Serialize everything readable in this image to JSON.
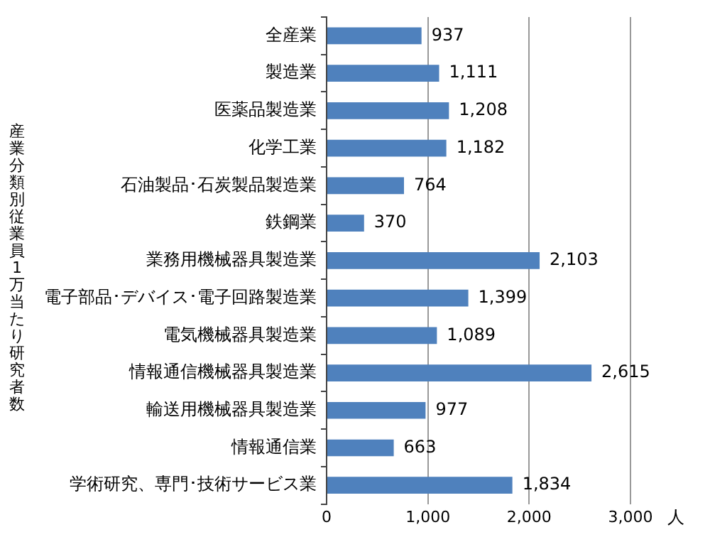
{
  "chart_data": {
    "type": "bar",
    "orientation": "horizontal",
    "ylabel": "産業分類別従業員1万当たり研究者数",
    "xlabel": "人",
    "categories": [
      "全産業",
      "製造業",
      "医薬品製造業",
      "化学工業",
      "石油製品･石炭製品製造業",
      "鉄鋼業",
      "業務用機械器具製造業",
      "電子部品･デバイス･電子回路製造業",
      "電気機械器具製造業",
      "情報通信機械器具製造業",
      "輸送用機械器具製造業",
      "情報通信業",
      "学術研究、専門･技術サービス業"
    ],
    "values": [
      937,
      1111,
      1208,
      1182,
      764,
      370,
      2103,
      1399,
      1089,
      2615,
      977,
      663,
      1834
    ],
    "value_labels": [
      "937",
      "1,111",
      "1,208",
      "1,182",
      "764",
      "370",
      "2,103",
      "1,399",
      "1,089",
      "2,615",
      "977",
      "663",
      "1,834"
    ],
    "color": "#4f81bd",
    "xlim": [
      0,
      3000
    ],
    "xticks": [
      0,
      {
        "value": 1000,
        "label": "1,000"
      },
      {
        "value": 2000,
        "label": "2,000"
      },
      {
        "value": 3000,
        "label": "3,000"
      }
    ],
    "grid": "x"
  }
}
